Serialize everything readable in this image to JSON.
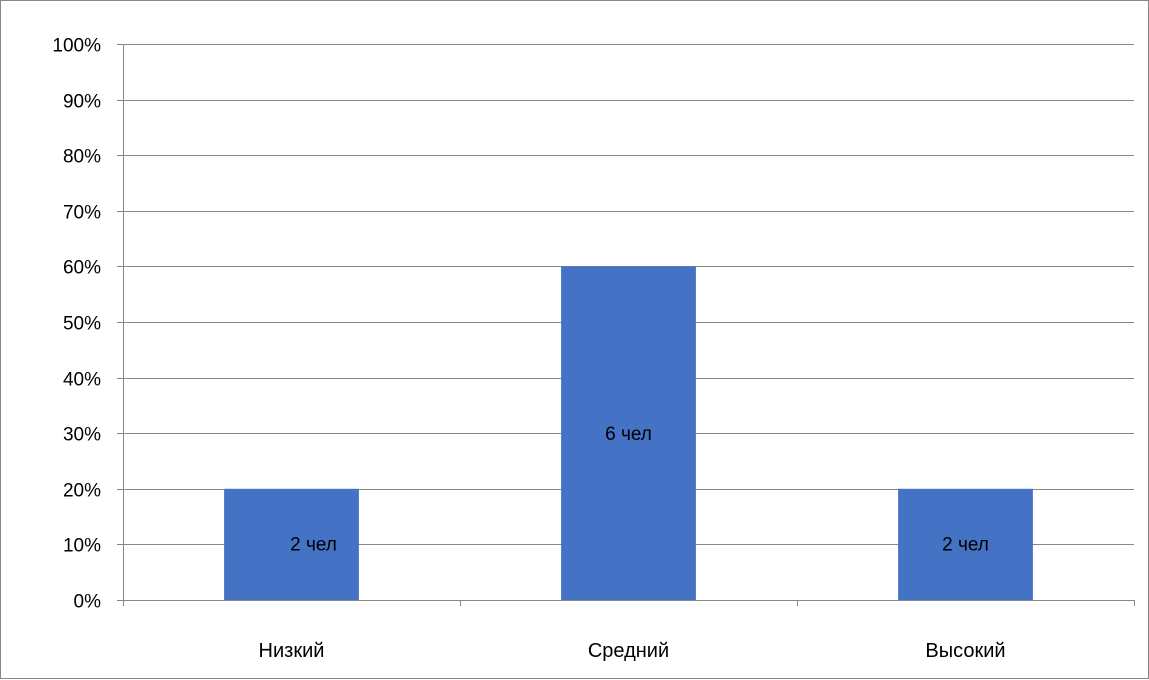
{
  "chart_data": {
    "type": "bar",
    "title": "",
    "xlabel": "",
    "ylabel": "",
    "categories": [
      "Низкий",
      "Средний",
      "Высокий"
    ],
    "values": [
      20,
      60,
      20
    ],
    "data_labels": [
      "2 чел",
      "6 чел",
      "2 чел"
    ],
    "ylim": [
      0,
      100
    ],
    "y_tick_values": [
      0,
      10,
      20,
      30,
      40,
      50,
      60,
      70,
      80,
      90,
      100
    ],
    "y_tick_labels": [
      "0%",
      "10%",
      "20%",
      "30%",
      "40%",
      "50%",
      "60%",
      "70%",
      "80%",
      "90%",
      "100%"
    ],
    "grid": true,
    "legend": "none",
    "bar_color": "#4472C4",
    "gridline_color": "#868686"
  }
}
